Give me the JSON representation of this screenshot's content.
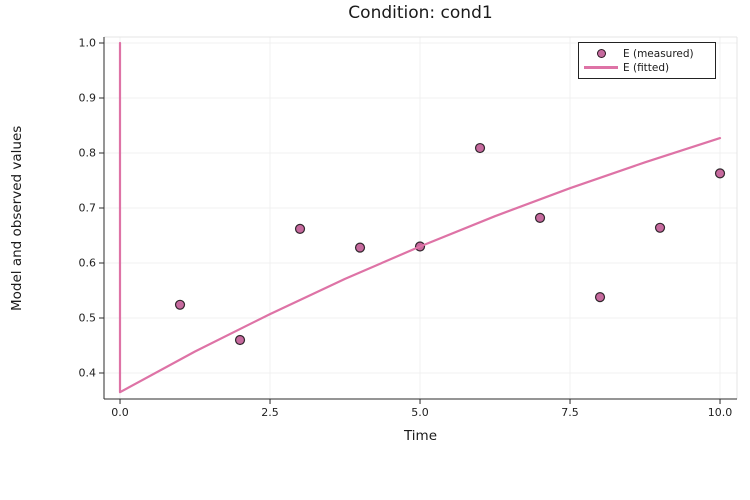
{
  "figure": {
    "background": "#ffffff"
  },
  "chart_data": {
    "type": "scatter+line",
    "title": "Condition: cond1",
    "xlabel": "Time",
    "ylabel": "Model and observed values",
    "xlim": [
      -0.267,
      10.283
    ],
    "ylim": [
      0.3527,
      1.0109
    ],
    "grid": true,
    "legend_position": "top-right",
    "xticks": {
      "values": [
        0.0,
        2.5,
        5.0,
        7.5,
        10.0
      ],
      "labels": [
        "0.0",
        "2.5",
        "5.0",
        "7.5",
        "10.0"
      ]
    },
    "yticks": {
      "values": [
        0.4,
        0.5,
        0.6,
        0.7,
        0.8,
        0.9,
        1.0
      ],
      "labels": [
        "0.4",
        "0.5",
        "0.6",
        "0.7",
        "0.8",
        "0.9",
        "1.0"
      ]
    },
    "series": [
      {
        "name": "E (measured)",
        "type": "scatter",
        "color": "#c66a9e",
        "edge_color": "#1f1f1f",
        "x": [
          1,
          2,
          3,
          4,
          5,
          6,
          7,
          8,
          9,
          10
        ],
        "y": [
          0.524,
          0.46,
          0.662,
          0.628,
          0.63,
          0.809,
          0.682,
          0.538,
          0.664,
          0.763
        ]
      },
      {
        "name": "E (fitted)",
        "type": "line",
        "color": "#de73a6",
        "x": [
          0,
          0,
          1.25,
          2.5,
          3.75,
          5.0,
          6.25,
          7.5,
          8.75,
          10.0
        ],
        "y": [
          1.0,
          0.365,
          0.439,
          0.507,
          0.571,
          0.63,
          0.685,
          0.736,
          0.783,
          0.827
        ]
      }
    ]
  },
  "style": {
    "axis_color": "#2b2b2b",
    "frame_light_color": "#e4e4e4",
    "grid_color": "#f1f1f1",
    "tick_label_color": "#1f1f1f"
  }
}
